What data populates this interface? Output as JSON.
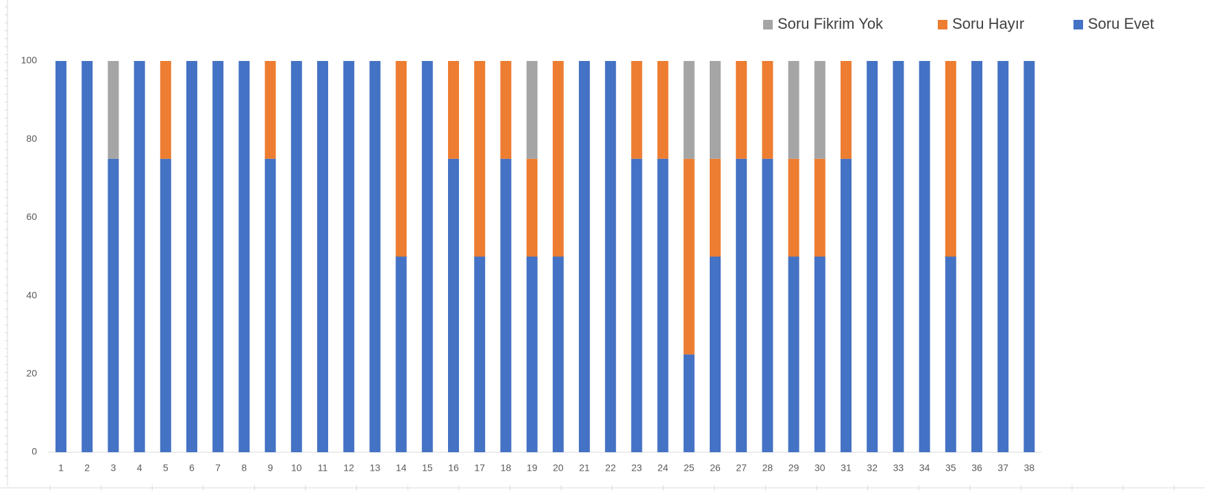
{
  "chart_data": {
    "type": "stacked_bar",
    "categories": [
      "1",
      "2",
      "3",
      "4",
      "5",
      "6",
      "7",
      "8",
      "9",
      "10",
      "11",
      "12",
      "13",
      "14",
      "15",
      "16",
      "17",
      "18",
      "19",
      "20",
      "21",
      "22",
      "23",
      "24",
      "25",
      "26",
      "27",
      "28",
      "29",
      "30",
      "31",
      "32",
      "33",
      "34",
      "35",
      "36",
      "37",
      "38"
    ],
    "series": [
      {
        "name": "Soru Evet",
        "color": "#4472c4",
        "values": [
          100,
          100,
          75,
          100,
          75,
          100,
          100,
          100,
          75,
          100,
          100,
          100,
          100,
          50,
          100,
          75,
          50,
          75,
          50,
          50,
          100,
          100,
          75,
          75,
          25,
          50,
          75,
          75,
          50,
          50,
          75,
          100,
          100,
          100,
          50,
          100,
          100,
          100
        ]
      },
      {
        "name": "Soru Hayır",
        "color": "#ed7d31",
        "values": [
          0,
          0,
          0,
          0,
          25,
          0,
          0,
          0,
          25,
          0,
          0,
          0,
          0,
          50,
          0,
          25,
          50,
          25,
          25,
          50,
          0,
          0,
          25,
          25,
          50,
          25,
          25,
          25,
          25,
          25,
          25,
          0,
          0,
          0,
          50,
          0,
          0,
          0
        ]
      },
      {
        "name": "Soru Fikrim Yok",
        "color": "#a5a5a5",
        "values": [
          0,
          0,
          25,
          0,
          0,
          0,
          0,
          0,
          0,
          0,
          0,
          0,
          0,
          0,
          0,
          0,
          0,
          0,
          25,
          0,
          0,
          0,
          0,
          0,
          25,
          25,
          0,
          0,
          25,
          25,
          0,
          0,
          0,
          0,
          0,
          0,
          0,
          0
        ]
      }
    ],
    "legend_order": [
      "Soru Fikrim Yok",
      "Soru Hayır",
      "Soru Evet"
    ],
    "ylim": [
      0,
      100
    ],
    "yticks": [
      0,
      20,
      40,
      60,
      80,
      100
    ],
    "grid": false
  }
}
